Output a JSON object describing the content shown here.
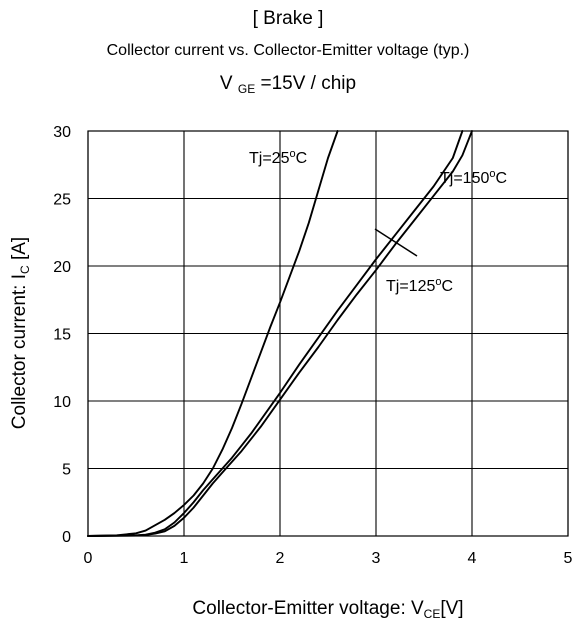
{
  "chart_data": {
    "type": "line",
    "title": "[ Brake ]",
    "subtitle": "Collector current vs. Collector-Emitter voltage (typ.)",
    "condition": {
      "prefix": "V",
      "subscript": "GE",
      "suffix": "=15V / chip"
    },
    "xlabel": {
      "prefix": "Collector-Emitter voltage: V",
      "subscript": "CE",
      "suffix": "[V]"
    },
    "ylabel": {
      "prefix": "Collector current: I",
      "subscript": "C",
      "suffix": " [A]"
    },
    "xlim": [
      0,
      5
    ],
    "ylim": [
      0,
      30
    ],
    "xticks": [
      0,
      1,
      2,
      3,
      4,
      5
    ],
    "yticks": [
      0,
      5,
      10,
      15,
      20,
      25,
      30
    ],
    "grid": true,
    "series": [
      {
        "name": "Tj=25°C",
        "x": [
          0,
          0.3,
          0.5,
          0.6,
          0.7,
          0.8,
          0.9,
          1.0,
          1.1,
          1.2,
          1.3,
          1.4,
          1.5,
          1.6,
          1.7,
          1.8,
          1.9,
          2.0,
          2.1,
          2.2,
          2.3,
          2.4,
          2.5,
          2.6
        ],
        "y": [
          0,
          0.05,
          0.2,
          0.4,
          0.8,
          1.2,
          1.7,
          2.3,
          3.0,
          3.9,
          5.0,
          6.4,
          8.0,
          9.8,
          11.7,
          13.6,
          15.5,
          17.3,
          19.2,
          21.1,
          23.2,
          25.6,
          28.0,
          30.0
        ]
      },
      {
        "name": "Tj=125°C",
        "x": [
          0,
          0.5,
          0.6,
          0.7,
          0.8,
          0.9,
          1.0,
          1.1,
          1.2,
          1.3,
          1.4,
          1.5,
          1.6,
          1.7,
          1.8,
          1.9,
          2.0,
          2.2,
          2.4,
          2.6,
          2.8,
          3.0,
          3.2,
          3.4,
          3.6,
          3.8,
          3.9
        ],
        "y": [
          0,
          0.05,
          0.1,
          0.25,
          0.5,
          1.0,
          1.7,
          2.5,
          3.4,
          4.2,
          5.0,
          5.8,
          6.7,
          7.6,
          8.6,
          9.6,
          10.6,
          12.7,
          14.7,
          16.7,
          18.6,
          20.5,
          22.3,
          24.1,
          25.9,
          28.0,
          30.0
        ]
      },
      {
        "name": "Tj=150°C",
        "x": [
          0,
          0.5,
          0.6,
          0.7,
          0.8,
          0.9,
          1.0,
          1.1,
          1.2,
          1.3,
          1.4,
          1.5,
          1.6,
          1.7,
          1.8,
          1.9,
          2.0,
          2.2,
          2.4,
          2.6,
          2.8,
          3.0,
          3.2,
          3.4,
          3.6,
          3.8,
          3.9,
          4.0
        ],
        "y": [
          0,
          0.03,
          0.08,
          0.18,
          0.35,
          0.75,
          1.35,
          2.1,
          3.0,
          3.9,
          4.7,
          5.5,
          6.3,
          7.2,
          8.1,
          9.1,
          10.1,
          12.1,
          14.0,
          16.0,
          17.9,
          19.7,
          21.6,
          23.4,
          25.2,
          27.0,
          28.2,
          30.0
        ]
      }
    ],
    "annotations": [
      {
        "series": 0,
        "name": "Tj",
        "value": "25",
        "degree": "o",
        "unit": "C"
      },
      {
        "series": 2,
        "name": "Tj",
        "value": "150",
        "degree": "o",
        "unit": "C"
      },
      {
        "series": 1,
        "name": "Tj",
        "value": "125",
        "degree": "o",
        "unit": "C"
      }
    ],
    "colors": {
      "line": "#000000",
      "grid": "#000000",
      "background": "#ffffff"
    }
  }
}
